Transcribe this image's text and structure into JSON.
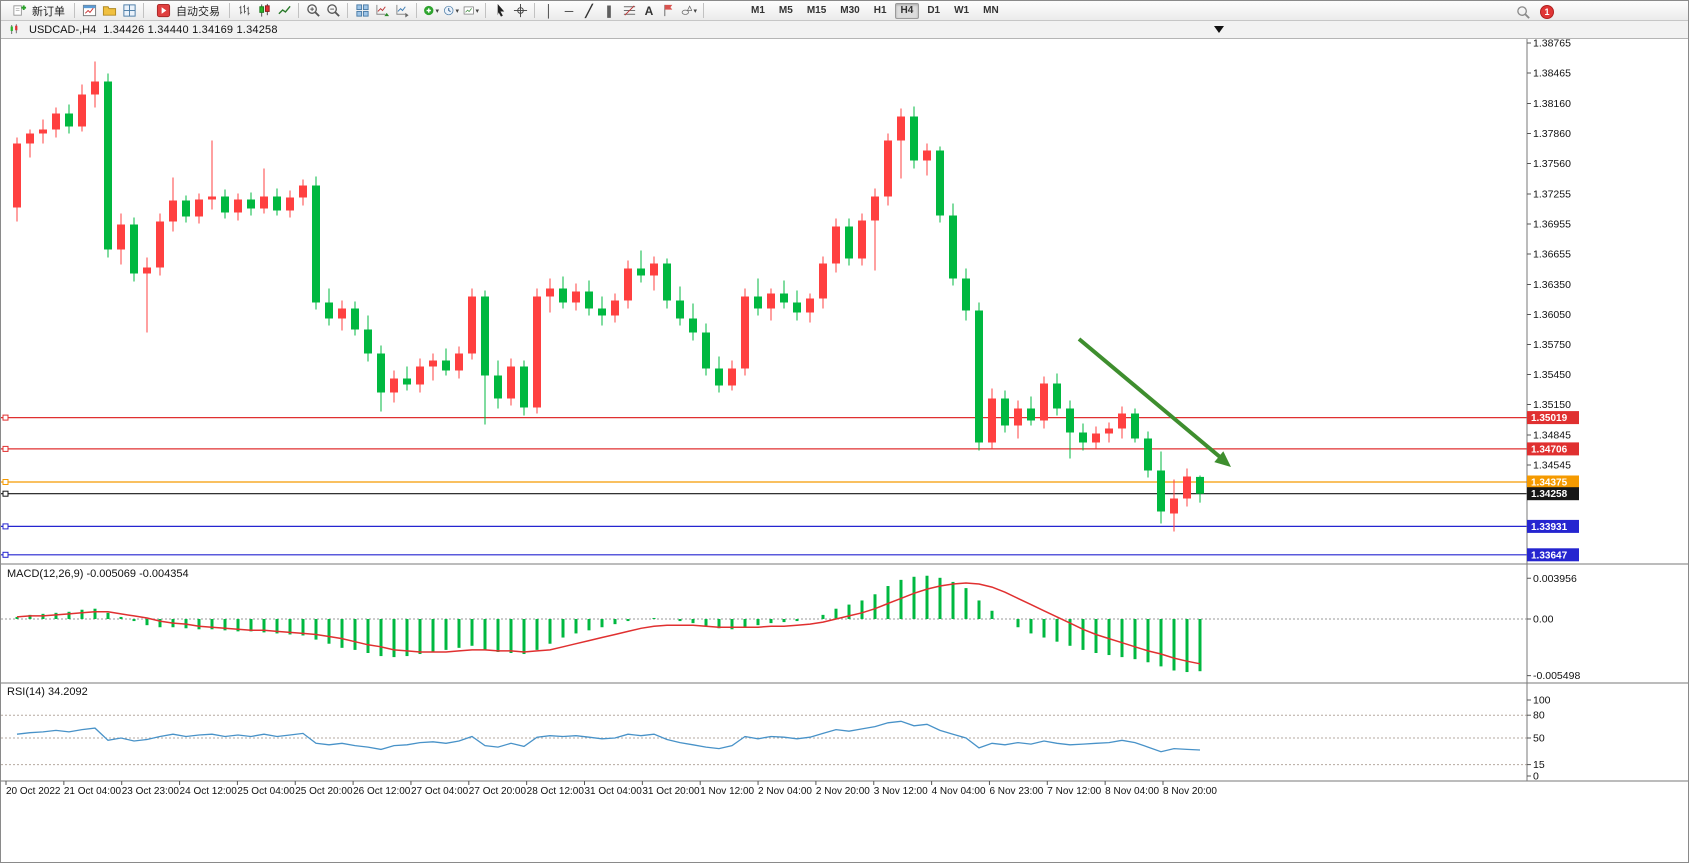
{
  "toolbar": {
    "new_order_label": "新订单",
    "auto_trading_label": "自动交易",
    "timeframes": [
      "M1",
      "M5",
      "M15",
      "M30",
      "H1",
      "H4",
      "D1",
      "W1",
      "MN"
    ],
    "active_timeframe": "H4",
    "notification_count": "1"
  },
  "chart": {
    "title": "USDCAD-,H4",
    "quote_text": "1.34426 1.34440 1.34169 1.34258",
    "open": "1.34426",
    "high": "1.34440",
    "low": "1.34169",
    "close": "1.34258"
  },
  "price_axis": {
    "labels": [
      "1.38765",
      "1.38465",
      "1.38160",
      "1.37860",
      "1.37560",
      "1.37255",
      "1.36955",
      "1.36655",
      "1.36350",
      "1.36050",
      "1.35750",
      "1.35450",
      "1.35150",
      "1.34845",
      "1.34545"
    ]
  },
  "levels": [
    {
      "price": 1.35019,
      "label": "1.35019",
      "color": "#e03030",
      "role": "resistance-line"
    },
    {
      "price": 1.34706,
      "label": "1.34706",
      "color": "#e03030",
      "role": "resistance-line"
    },
    {
      "price": 1.34375,
      "label": "1.34375",
      "color": "#f59a00",
      "role": "pivot-line"
    },
    {
      "price": 1.34258,
      "label": "1.34258",
      "color": "#161616",
      "role": "current-price-line"
    },
    {
      "price": 1.33931,
      "label": "1.33931",
      "color": "#2525d0",
      "role": "support-line"
    },
    {
      "price": 1.33647,
      "label": "1.33647",
      "color": "#2525d0",
      "role": "support-line"
    }
  ],
  "chart_data": {
    "type": "candlestick",
    "symbol": "USDCAD-",
    "timeframe": "H4",
    "bull_color": "#ff4040",
    "bear_color": "#00b840",
    "y_range": [
      1.334,
      1.388
    ],
    "x_labels": [
      "20 Oct 2022",
      "21 Oct 04:00",
      "23 Oct 23:00",
      "24 Oct 12:00",
      "25 Oct 04:00",
      "25 Oct 20:00",
      "26 Oct 12:00",
      "27 Oct 04:00",
      "27 Oct 20:00",
      "28 Oct 12:00",
      "31 Oct 04:00",
      "31 Oct 20:00",
      "1 Nov 12:00",
      "2 Nov 04:00",
      "2 Nov 20:00",
      "3 Nov 12:00",
      "4 Nov 04:00",
      "6 Nov 23:00",
      "7 Nov 12:00",
      "8 Nov 04:00",
      "8 Nov 20:00"
    ],
    "candles": [
      [
        1.3712,
        1.3782,
        1.3698,
        1.3776
      ],
      [
        1.3776,
        1.379,
        1.3762,
        1.3786
      ],
      [
        1.3786,
        1.38,
        1.3776,
        1.379
      ],
      [
        1.379,
        1.3812,
        1.3782,
        1.3806
      ],
      [
        1.3806,
        1.3815,
        1.3786,
        1.3793
      ],
      [
        1.3793,
        1.3835,
        1.3788,
        1.3825
      ],
      [
        1.3825,
        1.3858,
        1.3812,
        1.3838
      ],
      [
        1.3838,
        1.3846,
        1.3662,
        1.367
      ],
      [
        1.367,
        1.3706,
        1.3655,
        1.3695
      ],
      [
        1.3695,
        1.3702,
        1.3638,
        1.3646
      ],
      [
        1.3646,
        1.3662,
        1.3587,
        1.3652
      ],
      [
        1.3652,
        1.3706,
        1.3644,
        1.3698
      ],
      [
        1.3698,
        1.3742,
        1.3688,
        1.3719
      ],
      [
        1.3719,
        1.3724,
        1.3697,
        1.3703
      ],
      [
        1.3703,
        1.3726,
        1.3696,
        1.372
      ],
      [
        1.372,
        1.3779,
        1.371,
        1.3723
      ],
      [
        1.3723,
        1.373,
        1.3701,
        1.3707
      ],
      [
        1.3707,
        1.3726,
        1.3699,
        1.372
      ],
      [
        1.372,
        1.3727,
        1.3704,
        1.3711
      ],
      [
        1.3711,
        1.3751,
        1.3706,
        1.3723
      ],
      [
        1.3723,
        1.3731,
        1.3704,
        1.3709
      ],
      [
        1.3709,
        1.3729,
        1.3702,
        1.3722
      ],
      [
        1.3722,
        1.374,
        1.3714,
        1.3734
      ],
      [
        1.3734,
        1.3743,
        1.361,
        1.3617
      ],
      [
        1.3617,
        1.3631,
        1.3594,
        1.3601
      ],
      [
        1.3601,
        1.3619,
        1.3589,
        1.3611
      ],
      [
        1.3611,
        1.3618,
        1.3584,
        1.359
      ],
      [
        1.359,
        1.3604,
        1.3558,
        1.3566
      ],
      [
        1.3566,
        1.3574,
        1.3508,
        1.3527
      ],
      [
        1.3527,
        1.3549,
        1.3517,
        1.3541
      ],
      [
        1.3541,
        1.3553,
        1.3529,
        1.3535
      ],
      [
        1.3535,
        1.3561,
        1.3527,
        1.3553
      ],
      [
        1.3553,
        1.3566,
        1.3539,
        1.3559
      ],
      [
        1.3559,
        1.3571,
        1.3544,
        1.3549
      ],
      [
        1.3549,
        1.3573,
        1.3541,
        1.3566
      ],
      [
        1.3566,
        1.3631,
        1.356,
        1.3623
      ],
      [
        1.3623,
        1.3629,
        1.3495,
        1.3544
      ],
      [
        1.3544,
        1.3559,
        1.3511,
        1.3521
      ],
      [
        1.3521,
        1.3561,
        1.3514,
        1.3553
      ],
      [
        1.3553,
        1.3559,
        1.3504,
        1.3512
      ],
      [
        1.3512,
        1.3631,
        1.3506,
        1.3623
      ],
      [
        1.3623,
        1.3641,
        1.3607,
        1.3631
      ],
      [
        1.3631,
        1.3643,
        1.3611,
        1.3617
      ],
      [
        1.3617,
        1.3636,
        1.3609,
        1.3628
      ],
      [
        1.3628,
        1.3639,
        1.3604,
        1.3611
      ],
      [
        1.3611,
        1.3623,
        1.3594,
        1.3604
      ],
      [
        1.3604,
        1.3626,
        1.3597,
        1.3619
      ],
      [
        1.3619,
        1.3659,
        1.3611,
        1.3651
      ],
      [
        1.3651,
        1.3669,
        1.3637,
        1.3644
      ],
      [
        1.3644,
        1.3663,
        1.3629,
        1.3656
      ],
      [
        1.3656,
        1.3661,
        1.3611,
        1.3619
      ],
      [
        1.3619,
        1.3633,
        1.3594,
        1.3601
      ],
      [
        1.3601,
        1.3616,
        1.3579,
        1.3587
      ],
      [
        1.3587,
        1.3596,
        1.3544,
        1.3551
      ],
      [
        1.3551,
        1.3563,
        1.3527,
        1.3534
      ],
      [
        1.3534,
        1.3559,
        1.3529,
        1.3551
      ],
      [
        1.3551,
        1.3631,
        1.3544,
        1.3623
      ],
      [
        1.3623,
        1.3641,
        1.3604,
        1.3611
      ],
      [
        1.3611,
        1.3631,
        1.3599,
        1.3626
      ],
      [
        1.3626,
        1.3639,
        1.3611,
        1.3617
      ],
      [
        1.3617,
        1.3629,
        1.3599,
        1.3607
      ],
      [
        1.3607,
        1.3626,
        1.3597,
        1.3621
      ],
      [
        1.3621,
        1.3663,
        1.3611,
        1.3656
      ],
      [
        1.3656,
        1.3701,
        1.3647,
        1.3693
      ],
      [
        1.3693,
        1.3701,
        1.3654,
        1.3661
      ],
      [
        1.3661,
        1.3706,
        1.3654,
        1.3699
      ],
      [
        1.3699,
        1.3731,
        1.3649,
        1.3723
      ],
      [
        1.3723,
        1.3786,
        1.3714,
        1.3779
      ],
      [
        1.3779,
        1.3811,
        1.3741,
        1.3803
      ],
      [
        1.3803,
        1.3813,
        1.3751,
        1.3759
      ],
      [
        1.3759,
        1.3776,
        1.3744,
        1.3769
      ],
      [
        1.3769,
        1.3773,
        1.3697,
        1.3704
      ],
      [
        1.3704,
        1.3716,
        1.3634,
        1.3641
      ],
      [
        1.3641,
        1.3651,
        1.3599,
        1.3609
      ],
      [
        1.3609,
        1.3617,
        1.3469,
        1.3477
      ],
      [
        1.3477,
        1.3531,
        1.3471,
        1.3521
      ],
      [
        1.3521,
        1.3529,
        1.3487,
        1.3494
      ],
      [
        1.3494,
        1.3519,
        1.3481,
        1.3511
      ],
      [
        1.3511,
        1.3523,
        1.3494,
        1.3499
      ],
      [
        1.3499,
        1.3543,
        1.3491,
        1.3536
      ],
      [
        1.3536,
        1.3546,
        1.3504,
        1.3511
      ],
      [
        1.3511,
        1.3519,
        1.3461,
        1.3487
      ],
      [
        1.3487,
        1.3496,
        1.3469,
        1.3477
      ],
      [
        1.3477,
        1.3493,
        1.3471,
        1.3486
      ],
      [
        1.3486,
        1.3497,
        1.3477,
        1.3491
      ],
      [
        1.3491,
        1.3513,
        1.3481,
        1.3506
      ],
      [
        1.3506,
        1.3511,
        1.3477,
        1.3481
      ],
      [
        1.3481,
        1.3488,
        1.3442,
        1.3449
      ],
      [
        1.3449,
        1.3468,
        1.3396,
        1.3408
      ],
      [
        1.3406,
        1.344,
        1.3388,
        1.3421
      ],
      [
        1.3421,
        1.3451,
        1.3413,
        1.3443
      ],
      [
        1.34426,
        1.3444,
        1.34169,
        1.34258
      ]
    ]
  },
  "macd": {
    "label": "MACD(12,26,9)",
    "main_value": "-0.005069",
    "signal_value": "-0.004354",
    "axis": [
      "0.003956",
      "0.00",
      "-0.005498"
    ],
    "histogram_color": "#00b840",
    "signal_color": "#e03030",
    "histogram": [
      0.0002,
      0.0004,
      0.0005,
      0.0006,
      0.0007,
      0.0009,
      0.001,
      0.0006,
      0.0002,
      -0.0002,
      -0.0006,
      -0.0008,
      -0.0008,
      -0.0009,
      -0.001,
      -0.001,
      -0.0011,
      -0.0012,
      -0.0012,
      -0.0013,
      -0.0014,
      -0.0015,
      -0.0016,
      -0.002,
      -0.0024,
      -0.0028,
      -0.003,
      -0.0033,
      -0.0036,
      -0.0037,
      -0.0036,
      -0.0034,
      -0.0032,
      -0.003,
      -0.0028,
      -0.0026,
      -0.003,
      -0.0032,
      -0.0033,
      -0.0034,
      -0.003,
      -0.0024,
      -0.0018,
      -0.0014,
      -0.0011,
      -0.0008,
      -0.0005,
      -0.0002,
      0,
      0.0001,
      0,
      -0.0002,
      -0.0004,
      -0.0007,
      -0.0009,
      -0.001,
      -0.0008,
      -0.0006,
      -0.0004,
      -0.0003,
      -0.0002,
      0,
      0.0004,
      0.001,
      0.0014,
      0.0018,
      0.0024,
      0.0032,
      0.0038,
      0.0041,
      0.0042,
      0.004,
      0.0036,
      0.003,
      0.0018,
      0.0008,
      0,
      -0.0008,
      -0.0014,
      -0.0018,
      -0.0022,
      -0.0026,
      -0.003,
      -0.0033,
      -0.0035,
      -0.0037,
      -0.0039,
      -0.0042,
      -0.0046,
      -0.005,
      -0.00515,
      -0.005069
    ],
    "signal": [
      0.0002,
      0.0003,
      0.0003,
      0.0004,
      0.0005,
      0.0006,
      0.0007,
      0.0007,
      0.0005,
      0.0003,
      0.0001,
      -0.0002,
      -0.0004,
      -0.0005,
      -0.0007,
      -0.0008,
      -0.0009,
      -0.001,
      -0.0011,
      -0.0011,
      -0.0012,
      -0.0013,
      -0.0014,
      -0.0015,
      -0.0017,
      -0.0019,
      -0.0022,
      -0.0025,
      -0.0027,
      -0.003,
      -0.0031,
      -0.0032,
      -0.0032,
      -0.0032,
      -0.0031,
      -0.003,
      -0.003,
      -0.0031,
      -0.0031,
      -0.0032,
      -0.0031,
      -0.003,
      -0.0027,
      -0.0024,
      -0.0021,
      -0.0018,
      -0.0015,
      -0.0012,
      -0.0009,
      -0.0007,
      -0.0006,
      -0.0006,
      -0.0006,
      -0.0007,
      -0.0008,
      -0.0008,
      -0.0008,
      -0.0008,
      -0.0007,
      -0.0007,
      -0.0006,
      -0.0005,
      -0.0003,
      0,
      0.0003,
      0.0006,
      0.001,
      0.0015,
      0.002,
      0.0025,
      0.0029,
      0.0032,
      0.0034,
      0.0035,
      0.0034,
      0.0031,
      0.0026,
      0.002,
      0.0014,
      0.0008,
      0.0002,
      -0.0004,
      -0.001,
      -0.0015,
      -0.0019,
      -0.0023,
      -0.0027,
      -0.0031,
      -0.0034,
      -0.0038,
      -0.0041,
      -0.004354
    ]
  },
  "rsi": {
    "label": "RSI(14)",
    "value": "34.2092",
    "axis": [
      "100",
      "80",
      "50",
      "15",
      "0"
    ],
    "levels": [
      80,
      50,
      15
    ],
    "line_color": "#4892c8",
    "values": [
      55,
      57,
      58,
      60,
      58,
      61,
      63,
      47,
      50,
      46,
      48,
      52,
      55,
      52,
      54,
      55,
      52,
      54,
      52,
      55,
      52,
      54,
      56,
      43,
      41,
      43,
      40,
      38,
      35,
      40,
      41,
      44,
      45,
      43,
      46,
      52,
      40,
      38,
      43,
      39,
      51,
      53,
      52,
      53,
      51,
      49,
      50,
      55,
      53,
      55,
      48,
      44,
      41,
      38,
      36,
      40,
      52,
      49,
      52,
      51,
      49,
      51,
      56,
      61,
      59,
      62,
      65,
      70,
      72,
      66,
      68,
      60,
      55,
      50,
      37,
      43,
      41,
      44,
      42,
      46,
      43,
      41,
      42,
      43,
      44,
      47,
      44,
      38,
      32,
      36,
      35,
      34.2
    ]
  },
  "annotation": {
    "type": "trend-arrow",
    "direction": "down-right",
    "color": "#3e8e2e"
  }
}
